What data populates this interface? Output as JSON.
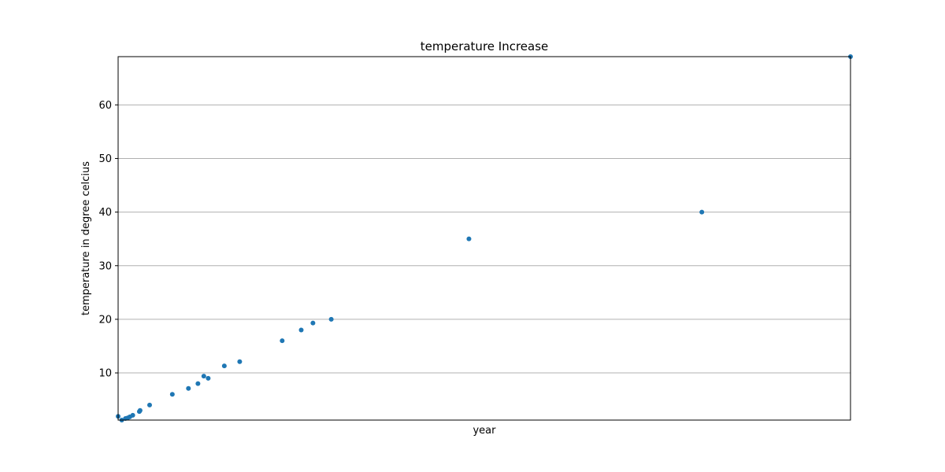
{
  "chart_data": {
    "type": "scatter",
    "title": "temperature Increase",
    "xlabel": "year",
    "ylabel": "temperature in degree celcius",
    "xlim": [
      0,
      100
    ],
    "ylim": [
      1.2,
      69
    ],
    "x_ticks_visible": false,
    "yticks": [
      10,
      20,
      30,
      40,
      50,
      60
    ],
    "grid": "horizontal",
    "legend": "none",
    "point_color": "#1f77b4",
    "series": [
      {
        "points": [
          {
            "x": 0.0,
            "y": 1.9
          },
          {
            "x": 0.5,
            "y": 1.2
          },
          {
            "x": 1.0,
            "y": 1.5
          },
          {
            "x": 1.3,
            "y": 1.6
          },
          {
            "x": 1.6,
            "y": 1.8
          },
          {
            "x": 2.0,
            "y": 2.1
          },
          {
            "x": 2.9,
            "y": 2.8
          },
          {
            "x": 3.0,
            "y": 3.0
          },
          {
            "x": 4.3,
            "y": 4.0
          },
          {
            "x": 7.4,
            "y": 6.0
          },
          {
            "x": 9.6,
            "y": 7.1
          },
          {
            "x": 10.9,
            "y": 8.0
          },
          {
            "x": 11.7,
            "y": 9.4
          },
          {
            "x": 12.3,
            "y": 9.0
          },
          {
            "x": 14.5,
            "y": 11.3
          },
          {
            "x": 16.6,
            "y": 12.1
          },
          {
            "x": 22.4,
            "y": 16.0
          },
          {
            "x": 25.0,
            "y": 18.0
          },
          {
            "x": 26.6,
            "y": 19.3
          },
          {
            "x": 29.1,
            "y": 20.0
          },
          {
            "x": 47.9,
            "y": 35.0
          },
          {
            "x": 79.7,
            "y": 40.0
          },
          {
            "x": 100.0,
            "y": 69.0
          }
        ]
      }
    ]
  }
}
